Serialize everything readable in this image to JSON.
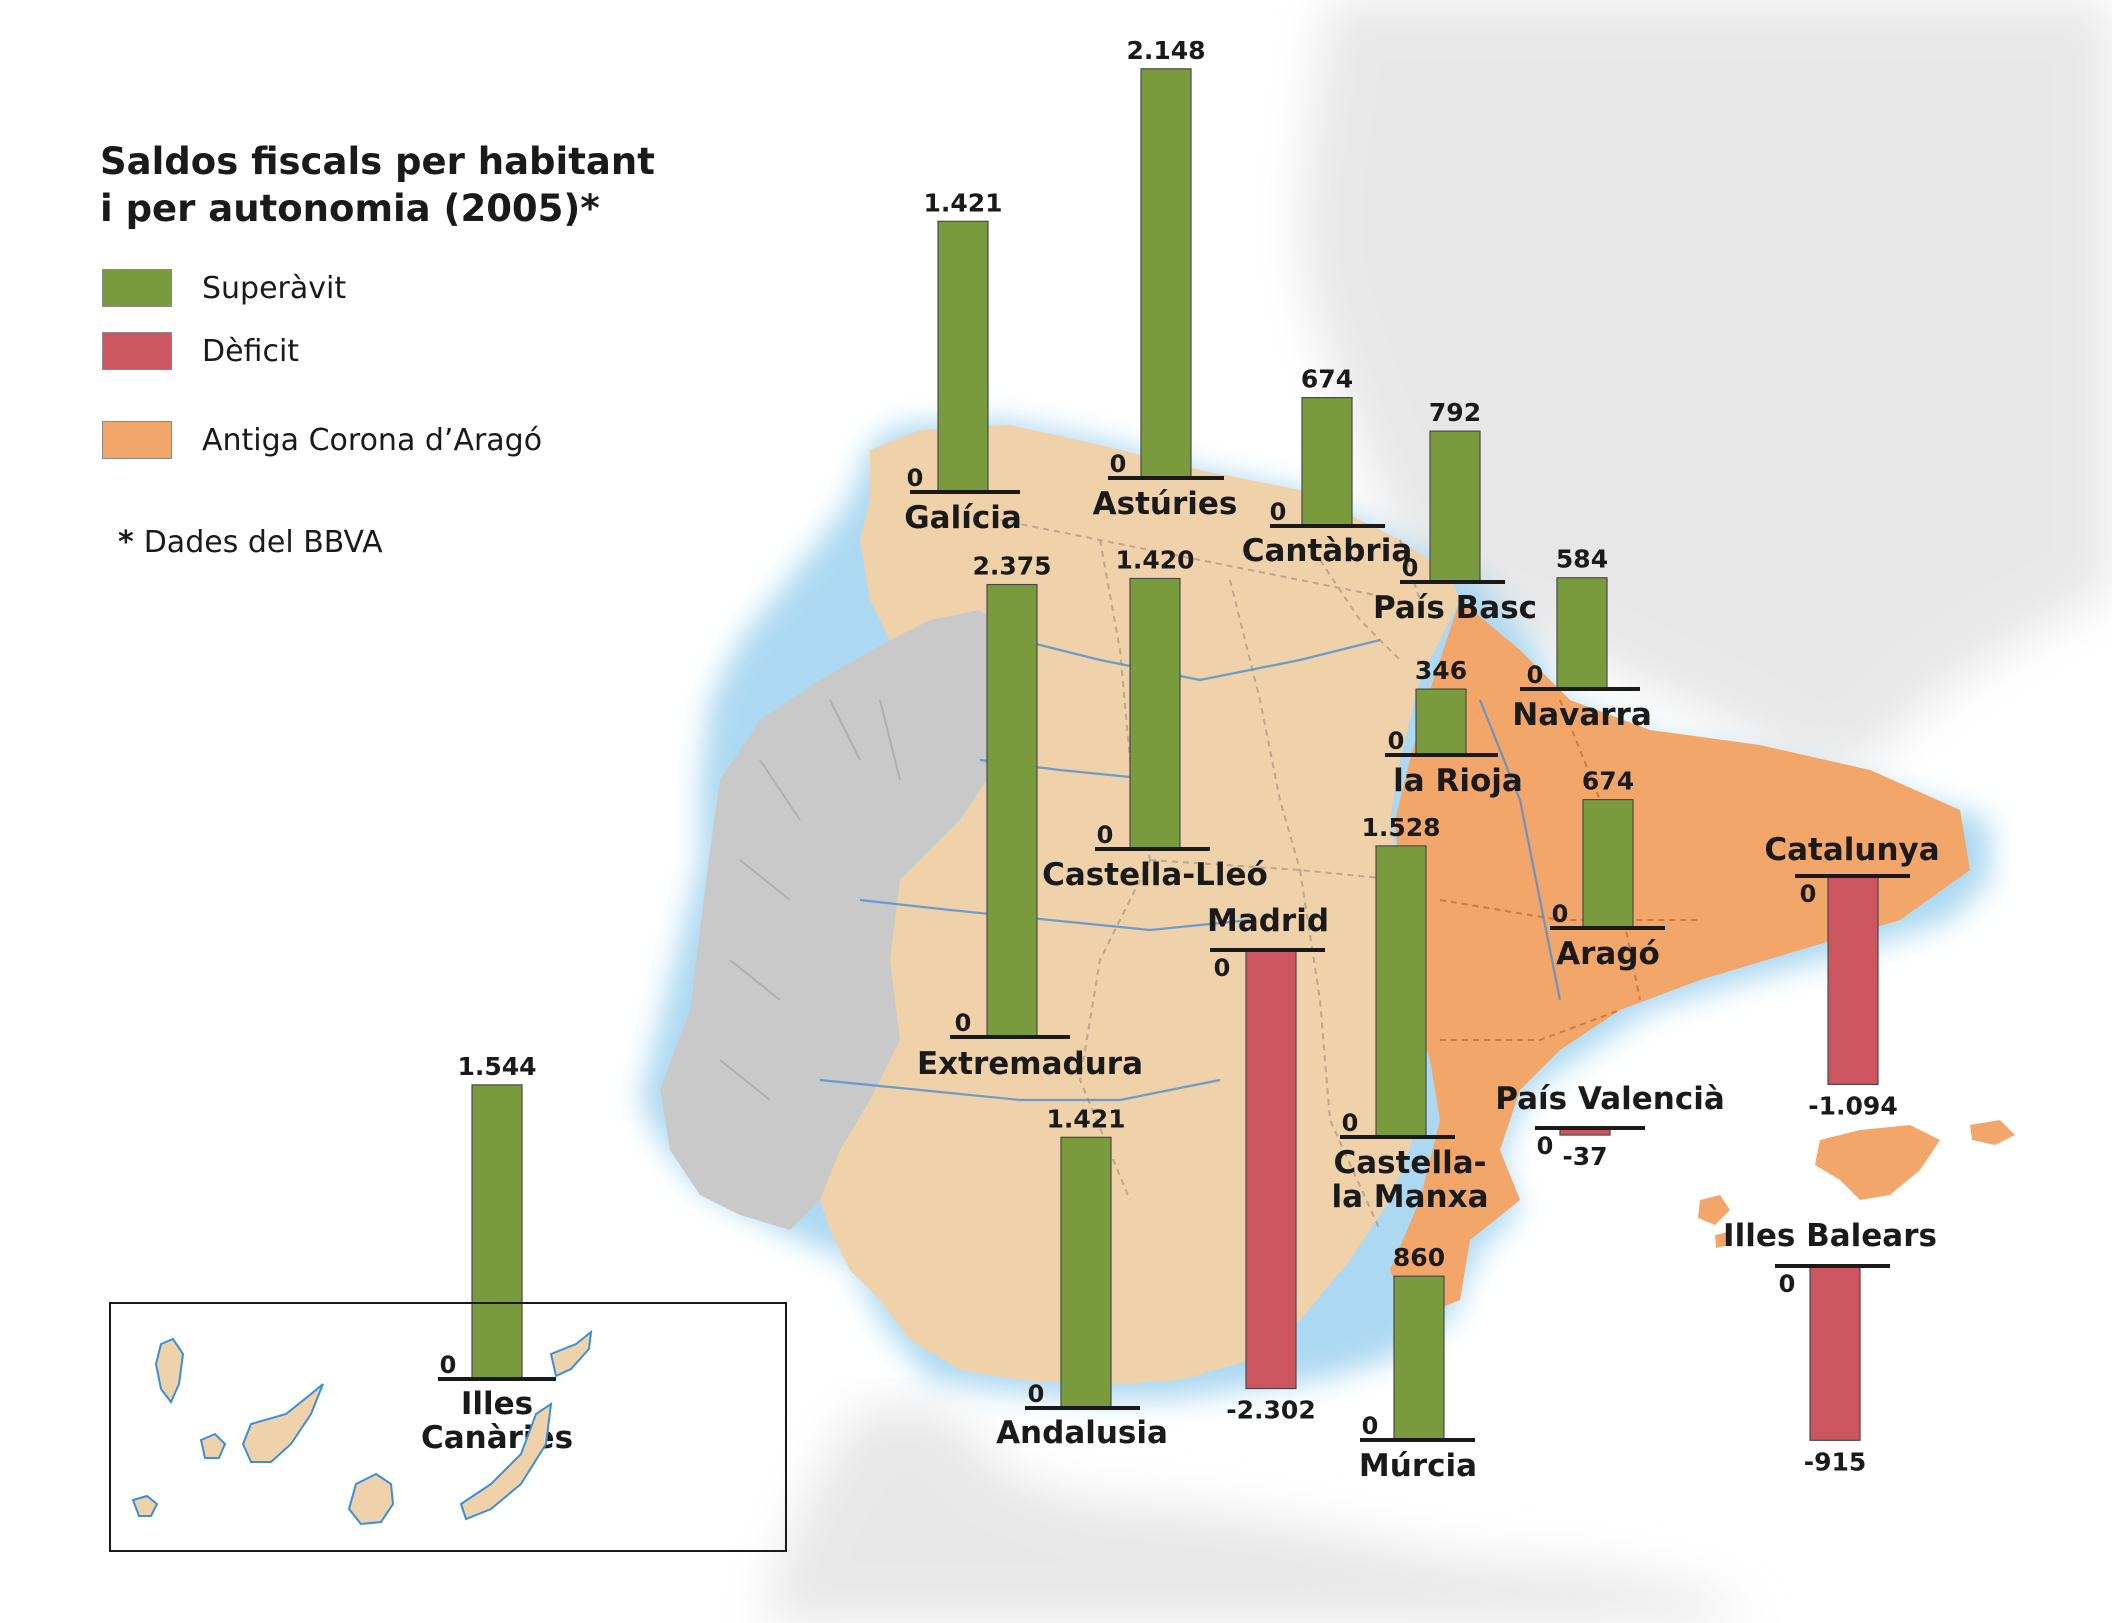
{
  "legend": {
    "title_line1": "Saldos fiscals per habitant",
    "title_line2": "i per autonomia (2005)*",
    "items": [
      {
        "label": "Superàvit",
        "color": "#7a9a3e"
      },
      {
        "label": "Dèficit",
        "color": "#cc5560"
      },
      {
        "label": "Antiga Corona d’Aragó",
        "color": "#f2a66a"
      }
    ],
    "note_marker": "*",
    "note": "Dades del BBVA"
  },
  "colors": {
    "surplus": "#7a9a3e",
    "deficit": "#cc5560",
    "aragon_crown": "#f2a66a",
    "land": "#efd2aa",
    "neighbor_land": "#cfcfcf",
    "sea_shadow": "#9fd2ef"
  },
  "zero_label": "0",
  "regions": [
    {
      "id": "galicia",
      "name": "Galícia",
      "value": 1421,
      "value_label": "1.421"
    },
    {
      "id": "asturies",
      "name": "Astúries",
      "value": 2148,
      "value_label": "2.148"
    },
    {
      "id": "cantabria",
      "name": "Cantàbria",
      "value": 674,
      "value_label": "674"
    },
    {
      "id": "pais-basc",
      "name": "País Basc",
      "value": 792,
      "value_label": "792"
    },
    {
      "id": "navarra",
      "name": "Navarra",
      "value": 584,
      "value_label": "584"
    },
    {
      "id": "la-rioja",
      "name": "la Rioja",
      "value": 346,
      "value_label": "346"
    },
    {
      "id": "extremadura",
      "name": "Extremadura",
      "value": 2375,
      "value_label": "2.375"
    },
    {
      "id": "castella-lleo",
      "name": "Castella-Lleó",
      "value": 1420,
      "value_label": "1.420"
    },
    {
      "id": "arago",
      "name": "Aragó",
      "value": 674,
      "value_label": "674"
    },
    {
      "id": "catalunya",
      "name": "Catalunya",
      "value": -1094,
      "value_label": "-1.094"
    },
    {
      "id": "madrid",
      "name": "Madrid",
      "value": -2302,
      "value_label": "-2.302"
    },
    {
      "id": "castella-la-manxa",
      "name": "Castella-\nla Manxa",
      "value": 1528,
      "value_label": "1.528"
    },
    {
      "id": "pais-valencia",
      "name": "País Valencià",
      "value": -37,
      "value_label": "-37"
    },
    {
      "id": "illes-balears",
      "name": "Illes Balears",
      "value": -915,
      "value_label": "-915"
    },
    {
      "id": "andalusia",
      "name": "Andalusia",
      "value": 1421,
      "value_label": "1.421"
    },
    {
      "id": "murcia",
      "name": "Múrcia",
      "value": 860,
      "value_label": "860"
    },
    {
      "id": "illes-canaries",
      "name": "Illes\nCanàries",
      "value": 1544,
      "value_label": "1.544"
    }
  ]
}
